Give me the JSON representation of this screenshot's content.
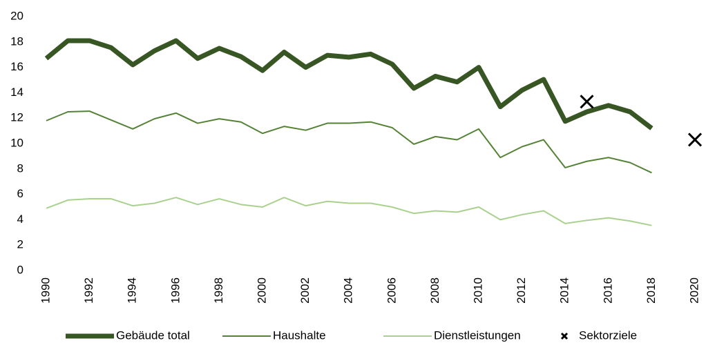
{
  "chart_data": {
    "type": "line",
    "x": [
      1990,
      1991,
      1992,
      1993,
      1994,
      1995,
      1996,
      1997,
      1998,
      1999,
      2000,
      2001,
      2002,
      2003,
      2004,
      2005,
      2006,
      2007,
      2008,
      2009,
      2010,
      2011,
      2012,
      2013,
      2014,
      2015,
      2016,
      2017,
      2018
    ],
    "series": [
      {
        "name": "Gebäude total",
        "color": "#375623",
        "width": 7,
        "values": [
          16.7,
          18.1,
          18.1,
          17.55,
          16.2,
          17.3,
          18.1,
          16.7,
          17.5,
          16.85,
          15.75,
          17.2,
          16.0,
          16.95,
          16.8,
          17.05,
          16.25,
          14.35,
          15.3,
          14.85,
          16.0,
          12.9,
          14.2,
          15.05,
          11.75,
          12.5,
          13.0,
          12.5,
          11.2
        ]
      },
      {
        "name": "Haushalte",
        "color": "#548235",
        "width": 2,
        "values": [
          11.8,
          12.5,
          12.55,
          11.85,
          11.15,
          11.95,
          12.4,
          11.6,
          11.95,
          11.7,
          10.8,
          11.35,
          11.05,
          11.6,
          11.6,
          11.7,
          11.25,
          9.95,
          10.55,
          10.3,
          11.15,
          8.9,
          9.75,
          10.3,
          8.1,
          8.6,
          8.9,
          8.5,
          7.7
        ]
      },
      {
        "name": "Dienstleistungen",
        "color": "#a9d18e",
        "width": 2,
        "values": [
          4.9,
          5.55,
          5.65,
          5.65,
          5.1,
          5.3,
          5.75,
          5.2,
          5.65,
          5.2,
          5.0,
          5.75,
          5.1,
          5.45,
          5.3,
          5.3,
          5.0,
          4.5,
          4.7,
          4.6,
          5.0,
          4.0,
          4.4,
          4.7,
          3.7,
          3.95,
          4.15,
          3.9,
          3.55
        ]
      },
      {
        "name": "Sektorziele",
        "color": "#000000",
        "marker": "x",
        "x": [
          2015,
          2020
        ],
        "values": [
          13.3,
          10.3
        ]
      }
    ],
    "xlim": [
      1990,
      2020
    ],
    "xticks": [
      1990,
      1992,
      1994,
      1996,
      1998,
      2000,
      2002,
      2004,
      2006,
      2008,
      2010,
      2012,
      2014,
      2016,
      2018,
      2020
    ],
    "ylim": [
      0,
      20
    ],
    "yticks": [
      0,
      2,
      4,
      6,
      8,
      10,
      12,
      14,
      16,
      18,
      20
    ],
    "grid": false,
    "legend": "bottom"
  }
}
